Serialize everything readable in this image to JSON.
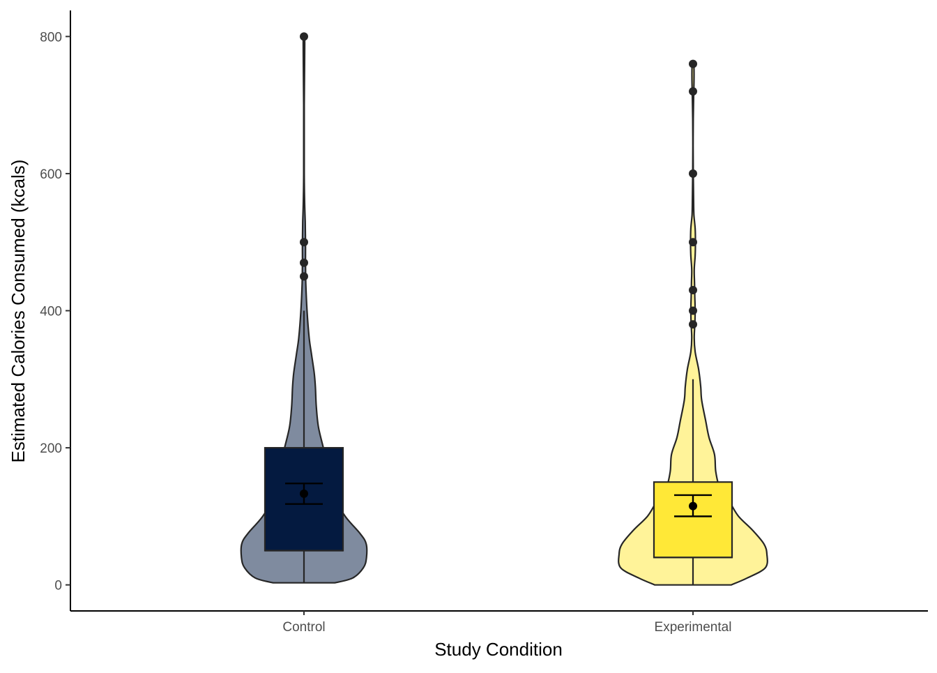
{
  "chart_data": {
    "type": "violin",
    "xlabel": "Study Condition",
    "ylabel": "Estimated Calories Consumed (kcals)",
    "categories": [
      "Control",
      "Experimental"
    ],
    "yticks": [
      0,
      200,
      400,
      600,
      800
    ],
    "ylim": [
      -38,
      838
    ],
    "grid": false,
    "legend": "none",
    "groups": [
      {
        "name": "Control",
        "violin_fill": "#7f8b9f",
        "box_fill": "#041a40",
        "box": {
          "q1": 50,
          "median": 50,
          "q3": 200,
          "whisker_low": 3,
          "whisker_high": 400
        },
        "mean": 133,
        "ci": [
          118,
          148
        ],
        "outliers": [
          450,
          470,
          500,
          800
        ],
        "density": [
          [
            3,
            1.0
          ],
          [
            10,
            1.58
          ],
          [
            25,
            1.93
          ],
          [
            40,
            2.03
          ],
          [
            60,
            2.02
          ],
          [
            75,
            1.82
          ],
          [
            100,
            1.34
          ],
          [
            130,
            0.95
          ],
          [
            160,
            0.76
          ],
          [
            180,
            0.73
          ],
          [
            200,
            0.63
          ],
          [
            230,
            0.47
          ],
          [
            260,
            0.4
          ],
          [
            290,
            0.37
          ],
          [
            310,
            0.33
          ],
          [
            335,
            0.25
          ],
          [
            360,
            0.17
          ],
          [
            400,
            0.1
          ],
          [
            440,
            0.06
          ],
          [
            470,
            0.05
          ],
          [
            500,
            0.05
          ],
          [
            530,
            0.04
          ],
          [
            560,
            0.02
          ],
          [
            600,
            0.01
          ],
          [
            700,
            0.01
          ],
          [
            760,
            0.02
          ],
          [
            790,
            0.025
          ],
          [
            800,
            0.02
          ]
        ]
      },
      {
        "name": "Experimental",
        "violin_fill": "#fff399",
        "box_fill": "#ffe837",
        "box": {
          "q1": 40,
          "median": 40,
          "q3": 150,
          "whisker_low": 0,
          "whisker_high": 300
        },
        "mean": 115,
        "ci": [
          100,
          131
        ],
        "outliers": [
          380,
          400,
          430,
          500,
          600,
          720,
          760
        ],
        "density": [
          [
            0,
            1.24
          ],
          [
            10,
            1.76
          ],
          [
            25,
            2.35
          ],
          [
            45,
            2.4
          ],
          [
            60,
            2.3
          ],
          [
            80,
            1.93
          ],
          [
            100,
            1.48
          ],
          [
            120,
            1.2
          ],
          [
            140,
            0.88
          ],
          [
            165,
            0.74
          ],
          [
            190,
            0.7
          ],
          [
            215,
            0.52
          ],
          [
            240,
            0.41
          ],
          [
            270,
            0.28
          ],
          [
            290,
            0.25
          ],
          [
            315,
            0.18
          ],
          [
            340,
            0.07
          ],
          [
            360,
            0.04
          ],
          [
            380,
            0.06
          ],
          [
            400,
            0.07
          ],
          [
            420,
            0.06
          ],
          [
            440,
            0.05
          ],
          [
            460,
            0.04
          ],
          [
            480,
            0.07
          ],
          [
            500,
            0.08
          ],
          [
            520,
            0.07
          ],
          [
            540,
            0.03
          ],
          [
            560,
            0.02
          ],
          [
            600,
            0.01
          ],
          [
            640,
            0.005
          ],
          [
            680,
            0.01
          ],
          [
            710,
            0.02
          ],
          [
            740,
            0.035
          ],
          [
            760,
            0.03
          ]
        ]
      }
    ]
  }
}
